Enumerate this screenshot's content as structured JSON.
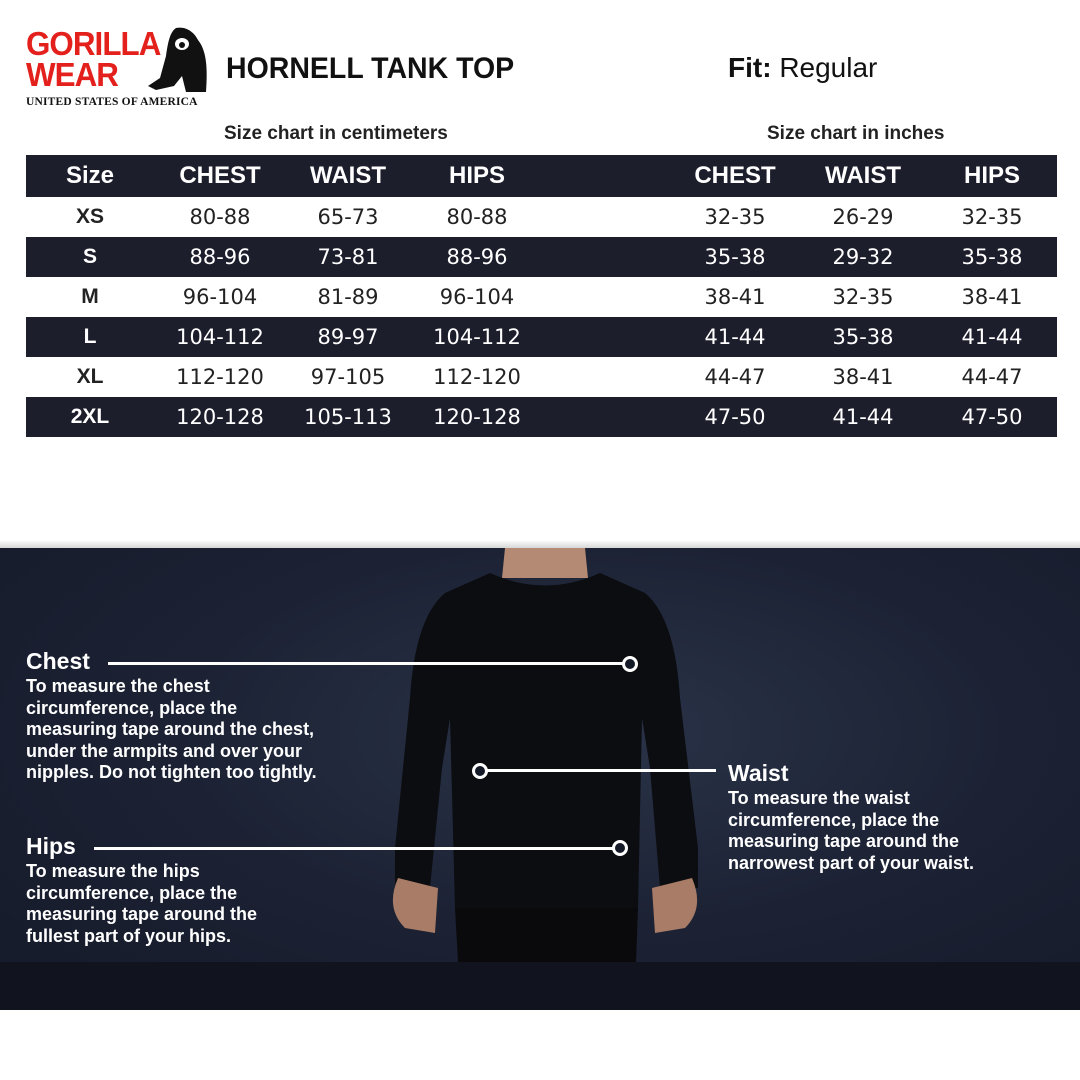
{
  "brand": {
    "logo_line1": "GORILLA",
    "logo_line2": "WEAR",
    "logo_sub": "UNITED STATES OF AMERICA",
    "logo_color": "#e3201b"
  },
  "product": {
    "title": "HORNELL TANK TOP",
    "fit_label": "Fit:",
    "fit_value": "Regular"
  },
  "captions": {
    "cm": "Size chart in centimeters",
    "inches": "Size chart in inches"
  },
  "table": {
    "headers": [
      "Size",
      "CHEST",
      "WAIST",
      "HIPS",
      "CHEST",
      "WAIST",
      "HIPS"
    ],
    "rows": [
      [
        "XS",
        "80-88",
        "65-73",
        "80-88",
        "32-35",
        "26-29",
        "32-35"
      ],
      [
        "S",
        "88-96",
        "73-81",
        "88-96",
        "35-38",
        "29-32",
        "35-38"
      ],
      [
        "M",
        "96-104",
        "81-89",
        "96-104",
        "38-41",
        "32-35",
        "38-41"
      ],
      [
        "L",
        "104-112",
        "89-97",
        "104-112",
        "41-44",
        "35-38",
        "41-44"
      ],
      [
        "XL",
        "112-120",
        "97-105",
        "112-120",
        "44-47",
        "38-41",
        "44-47"
      ],
      [
        "2XL",
        "120-128",
        "105-113",
        "120-128",
        "47-50",
        "41-44",
        "47-50"
      ]
    ]
  },
  "guide": {
    "chest": {
      "title": "Chest",
      "text": "To measure the chest\ncircumference, place the\nmeasuring tape around the chest,\nunder the armpits and over your\nnipples. Do not tighten too tightly."
    },
    "waist": {
      "title": "Waist",
      "text": "To measure the waist\ncircumference, place the\nmeasuring tape around the\nnarrowest part of your waist."
    },
    "hips": {
      "title": "Hips",
      "text": "To measure the hips\ncircumference, place the\nmeasuring tape around the\nfullest part of your hips."
    }
  },
  "colors": {
    "table_dark": "#1d1e2c",
    "panel": "#1c2234"
  }
}
